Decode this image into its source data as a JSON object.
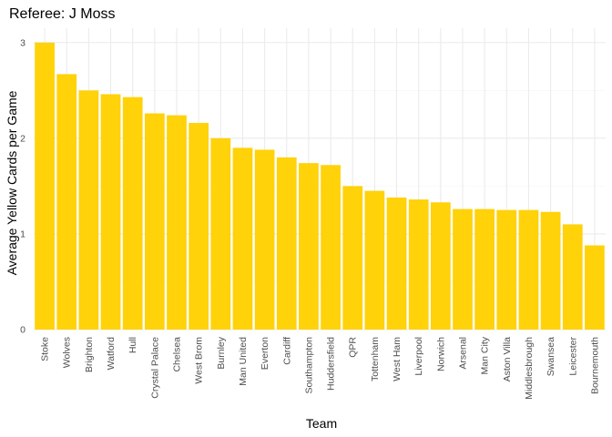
{
  "chart_data": {
    "type": "bar",
    "title": "Referee: J Moss",
    "xlabel": "Team",
    "ylabel": "Average Yellow Cards per Game",
    "ylim": [
      0,
      3.15
    ],
    "yticks": [
      0,
      1,
      2,
      3
    ],
    "grid": true,
    "bar_color": "#FFD20A",
    "categories": [
      "Stoke",
      "Wolves",
      "Brighton",
      "Watford",
      "Hull",
      "Crystal Palace",
      "Chelsea",
      "West Brom",
      "Burnley",
      "Man United",
      "Everton",
      "Cardiff",
      "Southampton",
      "Huddersfield",
      "QPR",
      "Tottenham",
      "West Ham",
      "Liverpool",
      "Norwich",
      "Arsenal",
      "Man City",
      "Aston Villa",
      "Middlesbrough",
      "Swansea",
      "Leicester",
      "Bournemouth"
    ],
    "values": [
      3.0,
      2.67,
      2.5,
      2.46,
      2.43,
      2.26,
      2.24,
      2.16,
      2.0,
      1.9,
      1.88,
      1.8,
      1.74,
      1.72,
      1.5,
      1.45,
      1.38,
      1.36,
      1.33,
      1.26,
      1.26,
      1.25,
      1.25,
      1.23,
      1.1,
      0.88
    ]
  }
}
